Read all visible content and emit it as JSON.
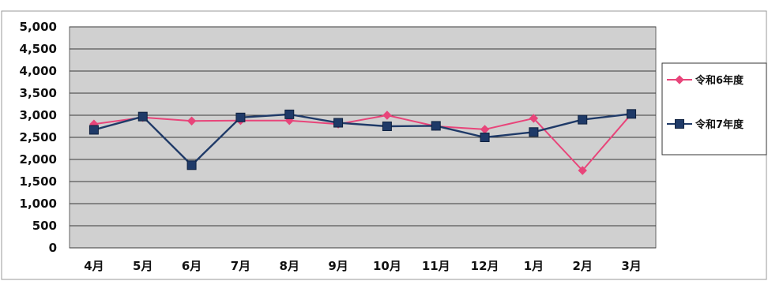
{
  "chart_data": {
    "type": "line",
    "title": "",
    "xlabel": "",
    "ylabel": "",
    "categories": [
      "4月",
      "5月",
      "6月",
      "7月",
      "8月",
      "9月",
      "10月",
      "11月",
      "12月",
      "1月",
      "2月",
      "3月"
    ],
    "ylim": [
      0,
      5000
    ],
    "yticks": [
      0,
      500,
      1000,
      1500,
      2000,
      2500,
      3000,
      3500,
      4000,
      4500,
      5000
    ],
    "ytick_labels": [
      "0",
      "500",
      "1,000",
      "1,500",
      "2,000",
      "2,500",
      "3,000",
      "3,500",
      "4,000",
      "4,500",
      "5,000"
    ],
    "grid": true,
    "legend_position": "right",
    "series": [
      {
        "name": "令和6年度",
        "color": "#e8457a",
        "marker": "diamond",
        "values": [
          2800,
          2950,
          2870,
          2880,
          2880,
          2800,
          3000,
          2750,
          2680,
          2930,
          1750,
          3030
        ]
      },
      {
        "name": "令和7年度",
        "color": "#1f3a68",
        "marker": "square",
        "values": [
          2670,
          2970,
          1870,
          2950,
          3020,
          2830,
          2750,
          2760,
          2500,
          2620,
          2900,
          3030
        ]
      }
    ]
  },
  "colors": {
    "plot_background": "#d0d0d0",
    "gridline": "#3a3a3a",
    "frame": "#666666"
  }
}
